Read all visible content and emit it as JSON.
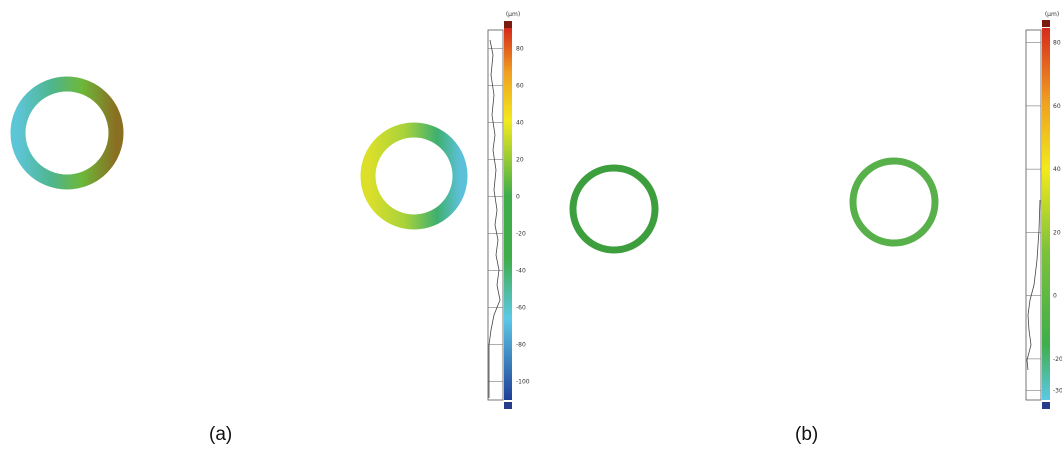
{
  "panel_a": {
    "caption": "(a)",
    "unit": "(μm)",
    "ticks": [
      "80",
      "60",
      "40",
      "20",
      "0",
      "-20",
      "-40",
      "-60",
      "-80",
      "-100"
    ],
    "tick_values": [
      80,
      60,
      40,
      20,
      0,
      -20,
      -40,
      -60,
      -80,
      -100
    ],
    "range": [
      -110,
      90
    ]
  },
  "panel_b": {
    "caption": "(b)",
    "unit": "(μm)",
    "ticks": [
      "80",
      "60",
      "40",
      "20",
      "0",
      "-20",
      "-30"
    ],
    "tick_values": [
      80,
      60,
      40,
      20,
      0,
      -20,
      -30
    ],
    "range": [
      -33,
      84
    ]
  },
  "colors": {
    "blue": "#1f3f99",
    "cyan": "#5cc9e6",
    "green": "#3fae4a",
    "yellow": "#f2ea1c",
    "orange": "#f0a020",
    "red": "#d62a1c",
    "darkred": "#7a1a10",
    "navy": "#283c8c"
  }
}
